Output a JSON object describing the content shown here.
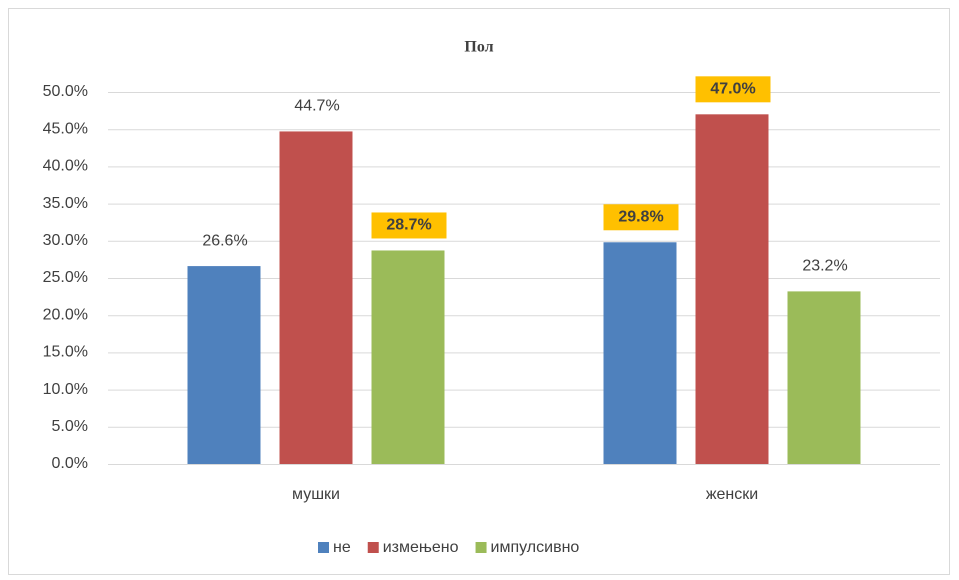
{
  "chart_data": {
    "type": "bar",
    "title": "Пол",
    "categories": [
      "мушки",
      "женски"
    ],
    "series": [
      {
        "name": "не",
        "color": "#4f81bd",
        "values": [
          26.6,
          29.8
        ],
        "value_labels": [
          "26.6%",
          "29.8%"
        ],
        "value_label_highlight": [
          false,
          true
        ]
      },
      {
        "name": "измењено",
        "color": "#c0504d",
        "values": [
          44.7,
          47.0
        ],
        "value_labels": [
          "44.7%",
          "47.0%"
        ],
        "value_label_highlight": [
          false,
          true
        ]
      },
      {
        "name": "импулсивно",
        "color": "#9bbb59",
        "values": [
          28.7,
          23.2
        ],
        "value_labels": [
          "28.7%",
          "23.2%"
        ],
        "value_label_highlight": [
          true,
          false
        ]
      }
    ],
    "ylim": [
      0,
      50
    ],
    "yticks": [
      {
        "value": 0,
        "label": "0.0%"
      },
      {
        "value": 5,
        "label": "5.0%"
      },
      {
        "value": 10,
        "label": "10.0%"
      },
      {
        "value": 15,
        "label": "15.0%"
      },
      {
        "value": 20,
        "label": "20.0%"
      },
      {
        "value": 25,
        "label": "25.0%"
      },
      {
        "value": 30,
        "label": "30.0%"
      },
      {
        "value": 35,
        "label": "35.0%"
      },
      {
        "value": 40,
        "label": "40.0%"
      },
      {
        "value": 45,
        "label": "45.0%"
      },
      {
        "value": 50,
        "label": "50.0%"
      }
    ],
    "grid": true,
    "highlight_color": "#ffc000",
    "legend": "bottom"
  }
}
